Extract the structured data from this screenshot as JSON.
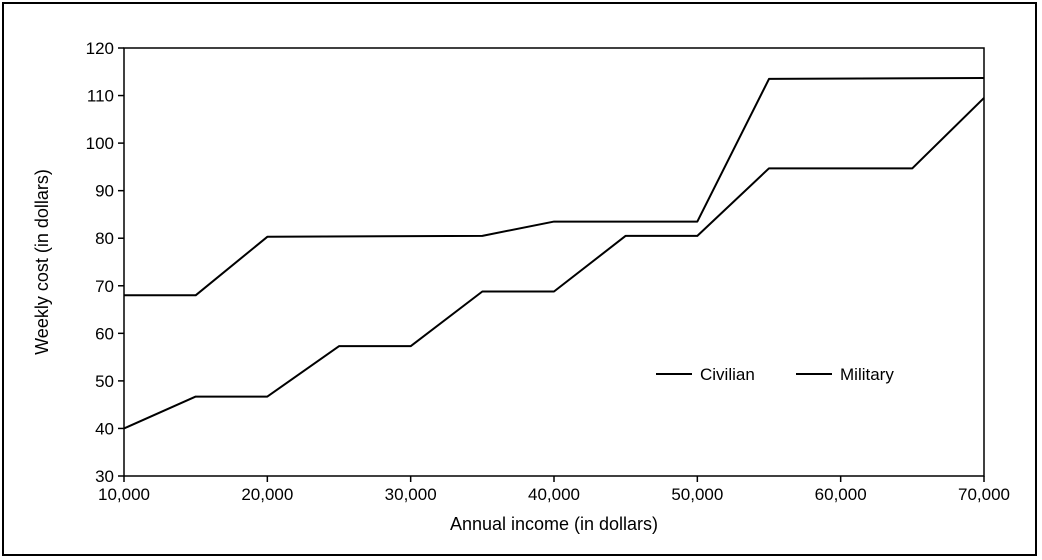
{
  "chart_data": {
    "type": "line",
    "title": "",
    "xlabel": "Annual income (in dollars)",
    "ylabel": "Weekly cost (in dollars)",
    "xlim": [
      10000,
      70000
    ],
    "ylim": [
      30,
      120
    ],
    "xticks": [
      10000,
      20000,
      30000,
      40000,
      50000,
      60000,
      70000
    ],
    "xtick_labels": [
      "10,000",
      "20,000",
      "30,000",
      "40,000",
      "50,000",
      "60,000",
      "70,000"
    ],
    "yticks": [
      30,
      40,
      50,
      60,
      70,
      80,
      90,
      100,
      110,
      120
    ],
    "ytick_labels": [
      "30",
      "40",
      "50",
      "60",
      "70",
      "80",
      "90",
      "100",
      "110",
      "120"
    ],
    "grid": false,
    "legend_position": "right-middle",
    "series": [
      {
        "name": "Civilian",
        "color": "#000000",
        "x": [
          10000,
          15000,
          20000,
          35000,
          40000,
          50000,
          55000,
          70000
        ],
        "y": [
          68,
          68,
          80.3,
          80.5,
          83.5,
          83.5,
          113.5,
          113.7
        ]
      },
      {
        "name": "Military",
        "color": "#000000",
        "x": [
          10000,
          15000,
          20000,
          25000,
          30000,
          35000,
          40000,
          45000,
          50000,
          55000,
          65000,
          70000
        ],
        "y": [
          40,
          46.7,
          46.7,
          57.3,
          57.3,
          68.8,
          68.8,
          80.5,
          80.5,
          94.7,
          94.7,
          109.5
        ]
      }
    ]
  }
}
